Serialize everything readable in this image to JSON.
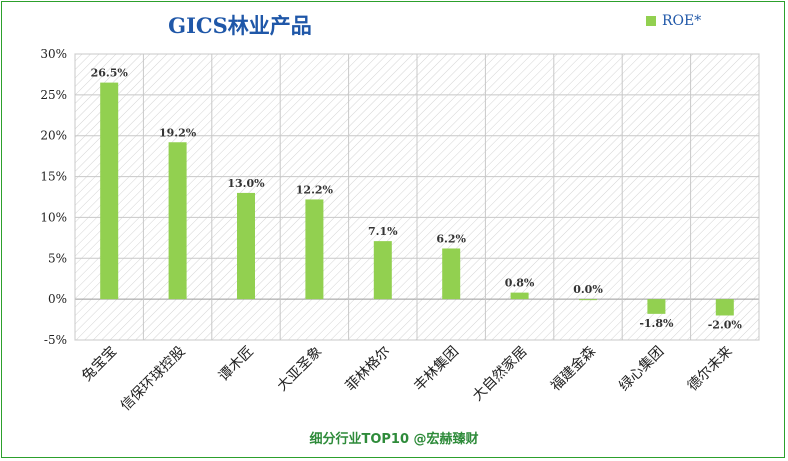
{
  "chart_data": {
    "type": "bar",
    "title": "GICS林业产品",
    "categories": [
      "兔宝宝",
      "信保环球控股",
      "谭木匠",
      "大亚圣象",
      "菲林格尔",
      "丰林集团",
      "大自然家居",
      "福建金森",
      "绿心集团",
      "德尔未来"
    ],
    "series": [
      {
        "name": "ROE*",
        "values": [
          26.5,
          19.2,
          13.0,
          12.2,
          7.1,
          6.2,
          0.8,
          0.0,
          -1.8,
          -2.0
        ],
        "labels": [
          "26.5%",
          "19.2%",
          "13.0%",
          "12.2%",
          "7.1%",
          "6.2%",
          "0.8%",
          "0.0%",
          "-1.8%",
          "-2.0%"
        ]
      }
    ],
    "ylim": [
      -5,
      30
    ],
    "yticks": [
      -5,
      0,
      5,
      10,
      15,
      20,
      25,
      30
    ],
    "ytick_labels": [
      "-5%",
      "0%",
      "5%",
      "10%",
      "15%",
      "20%",
      "25%",
      "30%"
    ],
    "xlabel": "",
    "ylabel": "",
    "grid": true,
    "legend_position": "top-right",
    "bar_color": "#92d050"
  },
  "footer": "细分行业TOP10 @宏赫臻财"
}
